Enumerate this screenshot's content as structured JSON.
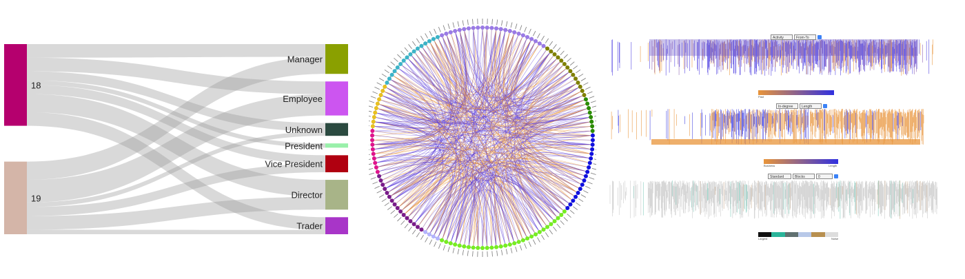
{
  "chart_data": [
    {
      "type": "sankey",
      "sources": [
        {
          "name": "18",
          "color": "#b5006e"
        },
        {
          "name": "19",
          "color": "#d4b5a8"
        }
      ],
      "targets": [
        {
          "name": "Manager",
          "color": "#8aa000"
        },
        {
          "name": "Employee",
          "color": "#cc55f0"
        },
        {
          "name": "Unknown",
          "color": "#2b4a40"
        },
        {
          "name": "President",
          "color": "#99f0aa"
        },
        {
          "name": "Vice President",
          "color": "#b00010"
        },
        {
          "name": "Director",
          "color": "#a8b488"
        },
        {
          "name": "Trader",
          "color": "#a835c8"
        }
      ],
      "links": [
        {
          "source": "18",
          "target": "Manager",
          "value": 3
        },
        {
          "source": "18",
          "target": "Employee",
          "value": 3
        },
        {
          "source": "18",
          "target": "Unknown",
          "value": 2
        },
        {
          "source": "18",
          "target": "President",
          "value": 1
        },
        {
          "source": "18",
          "target": "Vice President",
          "value": 2
        },
        {
          "source": "18",
          "target": "Director",
          "value": 4
        },
        {
          "source": "18",
          "target": "Trader",
          "value": 3
        },
        {
          "source": "19",
          "target": "Manager",
          "value": 4
        },
        {
          "source": "19",
          "target": "Employee",
          "value": 5
        },
        {
          "source": "19",
          "target": "Unknown",
          "value": 1
        },
        {
          "source": "19",
          "target": "Vice President",
          "value": 2
        },
        {
          "source": "19",
          "target": "Director",
          "value": 3
        },
        {
          "source": "19",
          "target": "Trader",
          "value": 1
        }
      ]
    },
    {
      "type": "chord",
      "node_count": 150,
      "group_colors": [
        "#9a7ae6",
        "#808000",
        "#2a8c00",
        "#1010e0",
        "#77ee22",
        "#b4b4ff",
        "#7a1c8a",
        "#e0148c",
        "#e8c020",
        "#3cb4c8"
      ],
      "edge_colors": [
        "#5a3ad8",
        "#e8943a"
      ]
    },
    {
      "type": "timeline",
      "panels": [
        {
          "controls": [
            "Activity",
            "From-To"
          ],
          "scale_colors": [
            "#e8943a",
            "#3030e0"
          ],
          "scale_label_left": "Past"
        },
        {
          "controls": [
            "In-degree",
            "Length"
          ],
          "scale_colors": [
            "#e8943a",
            "#3030e0"
          ],
          "scale_label_left": "Business",
          "scale_label_right": "Length"
        },
        {
          "controls": [
            "Standard",
            "Blocks",
            "0"
          ],
          "scale_colors": [
            "#111111",
            "#2ab59a",
            "#607070",
            "#b8c8e8",
            "#b89050",
            "#dddddd"
          ],
          "scale_label_left": "Largest",
          "scale_label_right": "Noise"
        }
      ]
    }
  ]
}
